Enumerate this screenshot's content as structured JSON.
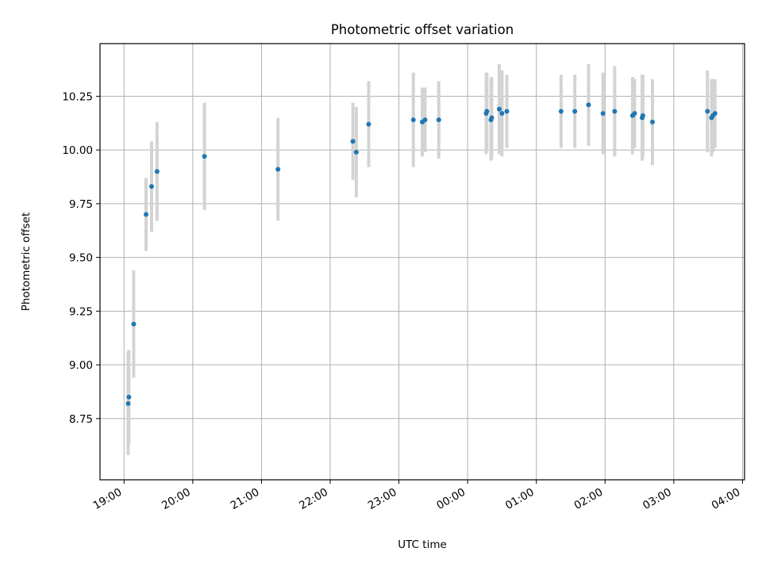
{
  "chart_data": {
    "type": "scatter",
    "title": "Photometric offset variation",
    "xlabel": "UTC time",
    "ylabel": "Photometric offset",
    "x_axis_unit": "hours after 19:00 UTC (day rolls over at 24:00)",
    "xlim": [
      -0.35,
      9.03
    ],
    "ylim": [
      8.465,
      10.495
    ],
    "x_ticks": [
      {
        "x": 0,
        "label": "19:00"
      },
      {
        "x": 1,
        "label": "20:00"
      },
      {
        "x": 2,
        "label": "21:00"
      },
      {
        "x": 3,
        "label": "22:00"
      },
      {
        "x": 4,
        "label": "23:00"
      },
      {
        "x": 5,
        "label": "00:00"
      },
      {
        "x": 6,
        "label": "01:00"
      },
      {
        "x": 7,
        "label": "02:00"
      },
      {
        "x": 8,
        "label": "03:00"
      },
      {
        "x": 9,
        "label": "04:00"
      }
    ],
    "y_ticks": [
      {
        "y": 8.75,
        "label": "8.75"
      },
      {
        "y": 9.0,
        "label": "9.00"
      },
      {
        "y": 9.25,
        "label": "9.25"
      },
      {
        "y": 9.5,
        "label": "9.50"
      },
      {
        "y": 9.75,
        "label": "9.75"
      },
      {
        "y": 10.0,
        "label": "10.00"
      },
      {
        "y": 10.25,
        "label": "10.25"
      }
    ],
    "grid": true,
    "marker_color": "#1f77b4",
    "errorbar_color": "#d3d3d3",
    "points": [
      {
        "x": 0.06,
        "y": 8.82,
        "err": 0.24
      },
      {
        "x": 0.07,
        "y": 8.85,
        "err": 0.22
      },
      {
        "x": 0.14,
        "y": 9.19,
        "err": 0.25
      },
      {
        "x": 0.32,
        "y": 9.7,
        "err": 0.17
      },
      {
        "x": 0.4,
        "y": 9.83,
        "err": 0.21
      },
      {
        "x": 0.48,
        "y": 9.9,
        "err": 0.23
      },
      {
        "x": 1.17,
        "y": 9.97,
        "err": 0.25
      },
      {
        "x": 2.24,
        "y": 9.91,
        "err": 0.24
      },
      {
        "x": 3.33,
        "y": 10.04,
        "err": 0.18
      },
      {
        "x": 3.38,
        "y": 9.99,
        "err": 0.21
      },
      {
        "x": 3.56,
        "y": 10.12,
        "err": 0.2
      },
      {
        "x": 4.21,
        "y": 10.14,
        "err": 0.22
      },
      {
        "x": 4.34,
        "y": 10.13,
        "err": 0.16
      },
      {
        "x": 4.38,
        "y": 10.14,
        "err": 0.15
      },
      {
        "x": 4.58,
        "y": 10.14,
        "err": 0.18
      },
      {
        "x": 5.27,
        "y": 10.17,
        "err": 0.19
      },
      {
        "x": 5.28,
        "y": 10.18,
        "err": 0.18
      },
      {
        "x": 5.34,
        "y": 10.14,
        "err": 0.19
      },
      {
        "x": 5.35,
        "y": 10.15,
        "err": 0.19
      },
      {
        "x": 5.46,
        "y": 10.19,
        "err": 0.21
      },
      {
        "x": 5.5,
        "y": 10.17,
        "err": 0.2
      },
      {
        "x": 5.57,
        "y": 10.18,
        "err": 0.17
      },
      {
        "x": 6.36,
        "y": 10.18,
        "err": 0.17
      },
      {
        "x": 6.56,
        "y": 10.18,
        "err": 0.17
      },
      {
        "x": 6.76,
        "y": 10.21,
        "err": 0.19
      },
      {
        "x": 6.97,
        "y": 10.17,
        "err": 0.19
      },
      {
        "x": 7.14,
        "y": 10.18,
        "err": 0.21
      },
      {
        "x": 7.4,
        "y": 10.16,
        "err": 0.18
      },
      {
        "x": 7.43,
        "y": 10.17,
        "err": 0.16
      },
      {
        "x": 7.54,
        "y": 10.15,
        "err": 0.2
      },
      {
        "x": 7.55,
        "y": 10.16,
        "err": 0.19
      },
      {
        "x": 7.69,
        "y": 10.13,
        "err": 0.2
      },
      {
        "x": 8.49,
        "y": 10.18,
        "err": 0.19
      },
      {
        "x": 8.55,
        "y": 10.15,
        "err": 0.18
      },
      {
        "x": 8.57,
        "y": 10.16,
        "err": 0.17
      },
      {
        "x": 8.6,
        "y": 10.17,
        "err": 0.16
      }
    ]
  }
}
